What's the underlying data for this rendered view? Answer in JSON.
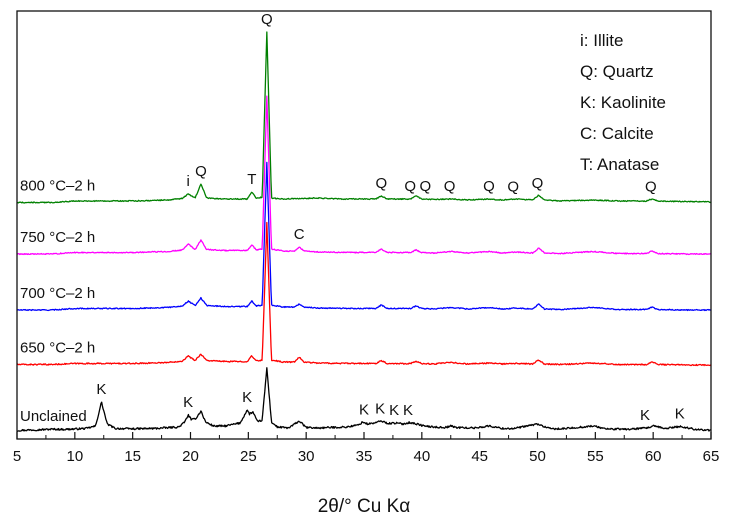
{
  "chart_data": {
    "type": "line",
    "title": "",
    "xlabel": "2θ/° Cu Kα",
    "ylabel": "",
    "xlim": [
      5,
      65
    ],
    "x_ticks": [
      "5",
      "10",
      "15",
      "20",
      "25",
      "30",
      "35",
      "40",
      "45",
      "50",
      "55",
      "60",
      "65"
    ],
    "x_tick_values": [
      5,
      10,
      15,
      20,
      25,
      30,
      35,
      40,
      45,
      50,
      55,
      60,
      65
    ],
    "y_units": "intensity (a.u., vertically offset, no ticks)",
    "series": [
      {
        "name": "Unclained",
        "color": "#000000",
        "baseline": 0,
        "noise": 0.9,
        "x": [
          5,
          6,
          7,
          8,
          9,
          10,
          11,
          11.8,
          12.3,
          12.8,
          13.5,
          15,
          17,
          19.0,
          19.5,
          19.8,
          20.1,
          20.5,
          20.9,
          21.3,
          22,
          23,
          24.3,
          24.9,
          25.1,
          25.4,
          25.8,
          26.2,
          26.6,
          27.0,
          27.5,
          28.5,
          29.4,
          30,
          31,
          32,
          33.5,
          34.5,
          34.9,
          35.3,
          35.9,
          36.5,
          37.1,
          37.7,
          38.4,
          38.9,
          39.4,
          40.2,
          41,
          42,
          42.5,
          43,
          44.5,
          45.8,
          47,
          48,
          50,
          51,
          52,
          54.8,
          56,
          58,
          59.5,
          60,
          61,
          62.3,
          63.5,
          64,
          65
        ],
        "y": [
          1.5,
          2.0,
          2.3,
          2.8,
          2.6,
          3.0,
          3.6,
          6,
          30,
          8,
          3.5,
          3.2,
          3.6,
          5,
          10,
          17,
          12,
          14,
          21,
          10,
          6,
          6,
          9,
          22,
          18,
          20,
          10,
          12,
          64,
          10,
          5,
          4,
          11,
          4.5,
          4,
          4.5,
          5,
          7,
          10,
          8,
          9,
          11,
          8.5,
          9,
          8,
          9.5,
          8.5,
          6,
          5,
          4.5,
          6,
          4.5,
          4,
          6,
          3.5,
          3.5,
          8,
          3.5,
          3,
          6,
          3,
          2.8,
          4,
          6,
          3.5,
          5.5,
          3,
          2.5,
          1.5
        ]
      },
      {
        "name": "650 °C–2 h",
        "color": "#ff0000",
        "baseline": 64,
        "noise": 0.6,
        "x": [
          5,
          8,
          10,
          15,
          18,
          19.3,
          19.8,
          20.4,
          20.9,
          21.4,
          23,
          24.9,
          25.3,
          25.7,
          26.2,
          26.6,
          27.0,
          28,
          29.0,
          29.4,
          29.8,
          31,
          34,
          36.0,
          36.5,
          37.0,
          39.0,
          39.5,
          40.0,
          41,
          42.5,
          44,
          45.8,
          47,
          48.2,
          49.6,
          50.1,
          50.6,
          52,
          54.8,
          57,
          59.4,
          59.9,
          60.4,
          63,
          65
        ],
        "y": [
          3.5,
          3.5,
          4.5,
          4.5,
          5.5,
          7,
          12,
          7.5,
          14,
          7.5,
          6.5,
          6.5,
          12,
          7,
          8,
          145,
          8,
          6,
          6,
          11,
          6,
          5,
          4.5,
          4.5,
          7.5,
          4.5,
          4.5,
          6.5,
          4.5,
          4,
          5.5,
          4,
          5,
          4,
          4.5,
          4,
          8,
          4,
          3.5,
          5,
          3.5,
          3.5,
          6,
          3.5,
          3,
          3
        ]
      },
      {
        "name": "700 °C–2 h",
        "color": "#0000ff",
        "baseline": 120,
        "noise": 0.5,
        "x": [
          5,
          8,
          10,
          15,
          18,
          19.3,
          19.8,
          20.4,
          20.9,
          21.4,
          23,
          24.9,
          25.3,
          25.7,
          26.2,
          26.6,
          27.0,
          28,
          29.0,
          29.4,
          29.8,
          31,
          34,
          36.0,
          36.5,
          37.0,
          39.0,
          39.5,
          40.0,
          41,
          42.5,
          44,
          45.8,
          47,
          48.2,
          49.6,
          50.1,
          50.6,
          52,
          54.8,
          57,
          59.4,
          59.9,
          60.4,
          63,
          65
        ],
        "y": [
          2,
          2,
          3.5,
          3.5,
          4.5,
          6,
          11,
          6.5,
          14,
          6.5,
          5.5,
          5.5,
          11,
          6,
          7,
          150,
          7,
          5,
          5,
          8,
          5,
          4,
          3.5,
          3.5,
          7,
          3.5,
          3.5,
          6,
          3.5,
          3,
          4.5,
          3,
          4.5,
          3,
          4,
          3,
          8,
          3,
          2.5,
          4.5,
          2.5,
          2.5,
          5,
          2.5,
          2,
          2
        ]
      },
      {
        "name": "750 °C–2 h",
        "color": "#ff00ff",
        "baseline": 176,
        "noise": 0.5,
        "x": [
          5,
          8,
          10,
          15,
          18,
          19.3,
          19.8,
          20.4,
          20.9,
          21.4,
          23,
          24.9,
          25.3,
          25.7,
          26.2,
          26.6,
          27.0,
          28,
          29.0,
          29.4,
          29.8,
          31,
          34,
          36.0,
          36.5,
          37.0,
          39.0,
          39.5,
          40.0,
          41,
          42.5,
          44,
          45.8,
          47,
          48.2,
          49.6,
          50.1,
          50.6,
          52,
          54.8,
          57,
          59.4,
          59.9,
          60.4,
          63,
          65
        ],
        "y": [
          2,
          2,
          3.5,
          3.5,
          4.5,
          6,
          12,
          6.5,
          16,
          6.5,
          5.5,
          5.5,
          11,
          6,
          7,
          160,
          7,
          5,
          5,
          9,
          5,
          4,
          3.5,
          3.5,
          7,
          3.5,
          3.5,
          6,
          3.5,
          3,
          4.5,
          3,
          4.5,
          3,
          4,
          3,
          8,
          3,
          2.5,
          4.5,
          2.5,
          2.5,
          5,
          2.5,
          2,
          2
        ]
      },
      {
        "name": "800 °C–2 h",
        "color": "#008000",
        "baseline": 228,
        "noise": 0.5,
        "x": [
          5,
          8,
          10,
          15,
          18,
          19.3,
          19.8,
          20.4,
          20.9,
          21.4,
          23,
          24.9,
          25.3,
          25.7,
          26.2,
          26.6,
          27.0,
          28,
          31,
          33,
          36.0,
          36.5,
          37.0,
          39.0,
          39.5,
          40.0,
          41,
          42.5,
          44,
          45.8,
          47,
          48.2,
          49.6,
          50.1,
          50.6,
          52,
          54.8,
          57,
          59.4,
          59.9,
          60.4,
          63,
          65
        ],
        "y": [
          1.5,
          1.5,
          3,
          3,
          4,
          5.5,
          10,
          6,
          20,
          6,
          5,
          5,
          12,
          5.5,
          7,
          172,
          6,
          5,
          6,
          5,
          5,
          8,
          5,
          5,
          8,
          5,
          4.5,
          5,
          4,
          5,
          4,
          5,
          4,
          9,
          4,
          3,
          4,
          3,
          3,
          5,
          3,
          2.5,
          2
        ]
      }
    ],
    "peak_labels": [
      {
        "text": "K",
        "x": 12.3,
        "series": 0
      },
      {
        "text": "K",
        "x": 19.8,
        "series": 0
      },
      {
        "text": "K",
        "x": 24.9,
        "series": 0
      },
      {
        "text": "K",
        "x": 35.0,
        "series": 0
      },
      {
        "text": "K",
        "x": 36.4,
        "series": 0
      },
      {
        "text": "K",
        "x": 37.6,
        "series": 0
      },
      {
        "text": "K",
        "x": 38.8,
        "series": 0
      },
      {
        "text": "K",
        "x": 59.3,
        "series": 0
      },
      {
        "text": "K",
        "x": 62.3,
        "series": 0
      },
      {
        "text": "C",
        "x": 29.4,
        "series": 3
      },
      {
        "text": "i",
        "x": 19.8,
        "series": 4
      },
      {
        "text": "Q",
        "x": 20.9,
        "series": 4
      },
      {
        "text": "T",
        "x": 25.3,
        "series": 4
      },
      {
        "text": "Q",
        "x": 26.6,
        "series": 4
      },
      {
        "text": "Q",
        "x": 36.5,
        "series": 4
      },
      {
        "text": "Q",
        "x": 39.0,
        "series": 4
      },
      {
        "text": "Q",
        "x": 40.3,
        "series": 4
      },
      {
        "text": "Q",
        "x": 42.4,
        "series": 4
      },
      {
        "text": "Q",
        "x": 45.8,
        "series": 4
      },
      {
        "text": "Q",
        "x": 47.9,
        "series": 4
      },
      {
        "text": "Q",
        "x": 50.0,
        "series": 4
      },
      {
        "text": "Q",
        "x": 59.8,
        "series": 4
      }
    ],
    "legend": {
      "placement": "top-right",
      "entries": [
        "i: Illite",
        "Q: Quartz",
        "K: Kaolinite",
        "C: Calcite",
        "T: Anatase"
      ]
    }
  }
}
